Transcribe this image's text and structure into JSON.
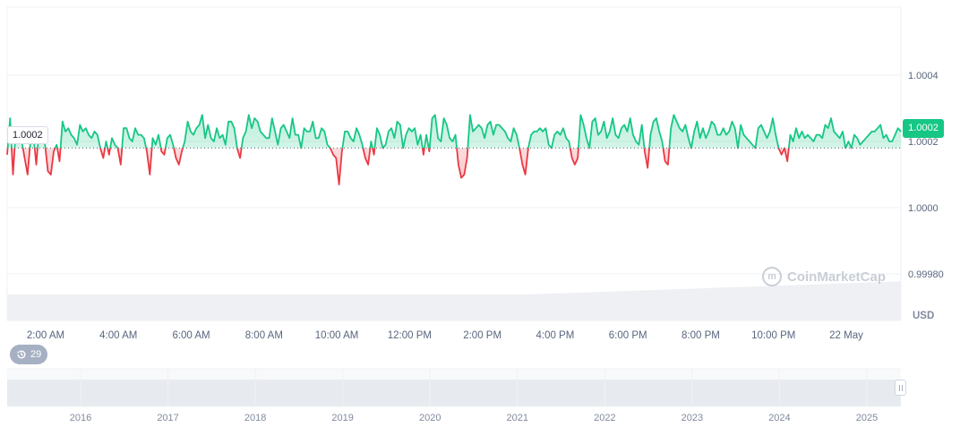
{
  "chart_data": {
    "type": "line",
    "title": "",
    "currency": "USD",
    "xlabel": "",
    "ylabel": "",
    "ylim": [
      0.9998,
      1.00056
    ],
    "y_ticks": [
      "1.0004",
      "1.0002",
      "1.0000",
      "0.99980"
    ],
    "y_tick_values": [
      1.0004,
      1.0002,
      1.0,
      0.9998
    ],
    "x_ticks": [
      "2:00 AM",
      "4:00 AM",
      "6:00 AM",
      "8:00 AM",
      "10:00 AM",
      "12:00 PM",
      "2:00 PM",
      "4:00 PM",
      "6:00 PM",
      "8:00 PM",
      "10:00 PM",
      "22 May"
    ],
    "reference_price": 1.00018,
    "reference_label": "1.0002",
    "current_price_label": "1.0002",
    "up_color": "#16c784",
    "down_color": "#ea3943",
    "series": [
      {
        "name": "price",
        "values": [
          1.00016,
          1.00027,
          1.0001,
          1.00024,
          1.00023,
          1.0002,
          1.00015,
          1.0001,
          1.0002,
          1.00022,
          1.00013,
          1.00024,
          1.00023,
          1.00019,
          1.00011,
          1.0001,
          1.00017,
          1.00019,
          1.00014,
          1.00026,
          1.00023,
          1.00024,
          1.00022,
          1.00021,
          1.00019,
          1.00025,
          1.00023,
          1.00024,
          1.00022,
          1.00021,
          1.00023,
          1.00022,
          1.00018,
          1.00015,
          1.0002,
          1.00016,
          1.00021,
          1.00019,
          1.00018,
          1.00013,
          1.00024,
          1.00024,
          1.00021,
          1.0002,
          1.00024,
          1.00022,
          1.00022,
          1.00021,
          1.00017,
          1.0001,
          1.00021,
          1.00019,
          1.00022,
          1.00017,
          1.00016,
          1.00021,
          1.00022,
          1.00019,
          1.00015,
          1.00013,
          1.00017,
          1.0002,
          1.00026,
          1.00023,
          1.00022,
          1.00024,
          1.00025,
          1.00028,
          1.00021,
          1.00025,
          1.00021,
          1.0002,
          1.00024,
          1.00021,
          1.00022,
          1.00019,
          1.00026,
          1.00026,
          1.00024,
          1.00018,
          1.00015,
          1.00021,
          1.00023,
          1.00028,
          1.00024,
          1.00027,
          1.00026,
          1.00023,
          1.00022,
          1.00021,
          1.00021,
          1.00027,
          1.00023,
          1.00019,
          1.00024,
          1.00025,
          1.00023,
          1.00021,
          1.00027,
          1.00022,
          1.00022,
          1.00018,
          1.00024,
          1.00023,
          1.00023,
          1.00026,
          1.00021,
          1.00021,
          1.00024,
          1.00023,
          1.00019,
          1.00018,
          1.00016,
          1.00015,
          1.00007,
          1.00017,
          1.00023,
          1.00023,
          1.00021,
          1.0002,
          1.00024,
          1.00022,
          1.00019,
          1.00015,
          1.00013,
          1.0002,
          1.00016,
          1.00024,
          1.00022,
          1.00018,
          1.00019,
          1.00023,
          1.00024,
          1.00021,
          1.00026,
          1.00025,
          1.00018,
          1.00022,
          1.00024,
          1.00023,
          1.00024,
          1.00019,
          1.00022,
          1.00016,
          1.00022,
          1.00017,
          1.00027,
          1.00028,
          1.00021,
          1.0002,
          1.00027,
          1.00025,
          1.00021,
          1.0002,
          1.00022,
          1.00013,
          1.00009,
          1.0001,
          1.00015,
          1.00028,
          1.00023,
          1.00024,
          1.00025,
          1.00024,
          1.00021,
          1.00025,
          1.00026,
          1.00022,
          1.00025,
          1.00025,
          1.00024,
          1.00023,
          1.00021,
          1.0002,
          1.00024,
          1.00022,
          1.00018,
          1.00013,
          1.0001,
          1.00018,
          1.00022,
          1.00023,
          1.00023,
          1.00024,
          1.00023,
          1.00024,
          1.00019,
          1.00018,
          1.00022,
          1.00023,
          1.00022,
          1.00024,
          1.00021,
          1.0002,
          1.00015,
          1.00013,
          1.00015,
          1.00028,
          1.00025,
          1.00021,
          1.00018,
          1.00026,
          1.00027,
          1.00022,
          1.00023,
          1.00026,
          1.00021,
          1.00023,
          1.00027,
          1.00022,
          1.00021,
          1.00024,
          1.00025,
          1.00023,
          1.00027,
          1.00022,
          1.0002,
          1.00019,
          1.00025,
          1.00017,
          1.00012,
          1.00022,
          1.00026,
          1.00027,
          1.00023,
          1.0002,
          1.00014,
          1.00013,
          1.00024,
          1.00028,
          1.00026,
          1.00024,
          1.00023,
          1.00025,
          1.00021,
          1.00018,
          1.00023,
          1.00026,
          1.00021,
          1.00024,
          1.00021,
          1.00023,
          1.00026,
          1.00025,
          1.00022,
          1.00022,
          1.00024,
          1.00022,
          1.00023,
          1.00026,
          1.00024,
          1.00018,
          1.00025,
          1.00022,
          1.00021,
          1.0002,
          1.00019,
          1.00018,
          1.00024,
          1.00025,
          1.00023,
          1.00021,
          1.00023,
          1.00027,
          1.00022,
          1.00018,
          1.00016,
          1.00018,
          1.00014,
          1.00022,
          1.0002,
          1.00024,
          1.00021,
          1.00023,
          1.00021,
          1.00022,
          1.00021,
          1.0002,
          1.00022,
          1.00022,
          1.00021,
          1.00025,
          1.00024,
          1.00027,
          1.00023,
          1.00022,
          1.00021,
          1.00023,
          1.00018,
          1.0002,
          1.00018,
          1.00022,
          1.00021,
          1.00019,
          1.0002,
          1.00021,
          1.00022,
          1.00023,
          1.00023,
          1.00024,
          1.00025,
          1.00021,
          1.00022,
          1.0002,
          1.0002,
          1.00022,
          1.00024,
          1.00023
        ]
      }
    ],
    "volume_label": "",
    "navigator_ticks": [
      "2016",
      "2017",
      "2018",
      "2019",
      "2020",
      "2021",
      "2022",
      "2023",
      "2024",
      "2025"
    ],
    "watermark": "CoinMarketCap",
    "history_count": "29"
  }
}
